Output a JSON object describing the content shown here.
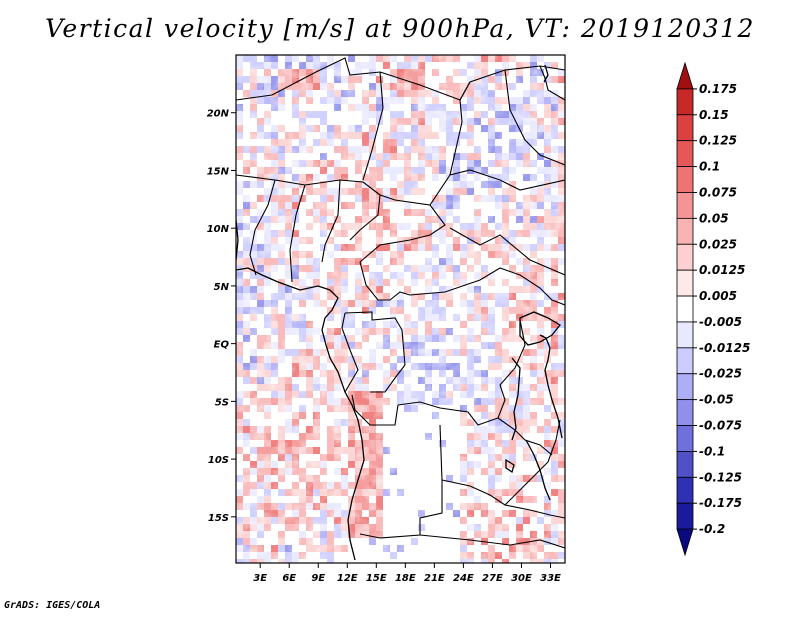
{
  "title": "Vertical velocity [m/s] at 900hPa, VT: 2019120312",
  "footer": "GrADS: IGES/COLA",
  "map": {
    "lat_range": [
      -19,
      25
    ],
    "lon_range": [
      0.5,
      34.5
    ],
    "lat_ticks": [
      "20N",
      "15N",
      "10N",
      "5N",
      "EQ",
      "5S",
      "10S",
      "15S"
    ],
    "lat_tick_values": [
      20,
      15,
      10,
      5,
      0,
      -5,
      -10,
      -15
    ],
    "lon_ticks": [
      "3E",
      "6E",
      "9E",
      "12E",
      "15E",
      "18E",
      "21E",
      "24E",
      "27E",
      "30E",
      "33E"
    ],
    "lon_tick_values": [
      3,
      6,
      9,
      12,
      15,
      18,
      21,
      24,
      27,
      30,
      33
    ]
  },
  "colorbar": {
    "labels": [
      "0.175",
      "0.15",
      "0.125",
      "0.1",
      "0.075",
      "0.05",
      "0.025",
      "0.0125",
      "0.005",
      "-0.005",
      "-0.0125",
      "-0.025",
      "-0.05",
      "-0.075",
      "-0.1",
      "-0.125",
      "-0.175",
      "-0.2"
    ],
    "colors": [
      "#a01010",
      "#c82828",
      "#dc4040",
      "#e65858",
      "#ee7474",
      "#f49494",
      "#f8b4b4",
      "#fcd0d0",
      "#fee8e8",
      "#ffffff",
      "#e8e8ff",
      "#ccccff",
      "#aeaef8",
      "#9090ec",
      "#7070dc",
      "#5050c8",
      "#3030b4",
      "#1a1a9c",
      "#0a0a80"
    ]
  }
}
